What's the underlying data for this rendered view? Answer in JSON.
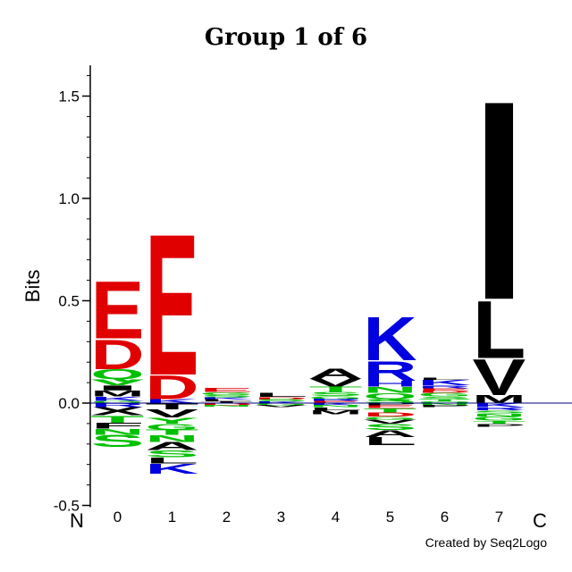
{
  "chart_data": {
    "type": "sequence-logo",
    "title": "Group 1 of 6",
    "ylabel": "Bits",
    "ylim": [
      -0.5,
      1.65
    ],
    "yticks": [
      -0.5,
      0.0,
      0.5,
      1.0,
      1.5
    ],
    "ytick_labels": [
      "-0.5",
      "0.0",
      "0.5",
      "1.0",
      "1.5"
    ],
    "positions": [
      "0",
      "1",
      "2",
      "3",
      "4",
      "5",
      "6",
      "7"
    ],
    "n_label": "N",
    "c_label": "C",
    "credit": "Created by Seq2Logo",
    "colors": {
      "acidic": "#e00000",
      "basic": "#0000e0",
      "polar": "#00c000",
      "hydrophobic": "#000000",
      "baseline": "#000080"
    },
    "columns": [
      {
        "position": "0",
        "positive": [
          {
            "letter": "E",
            "value": 0.29,
            "color": "#e00000"
          },
          {
            "letter": "D",
            "value": 0.15,
            "color": "#e00000"
          },
          {
            "letter": "Q",
            "value": 0.05,
            "color": "#00c000"
          },
          {
            "letter": "V",
            "value": 0.03,
            "color": "#00c000"
          },
          {
            "letter": "I",
            "value": 0.025,
            "color": "#000000"
          },
          {
            "letter": "M",
            "value": 0.03,
            "color": "#000000"
          },
          {
            "letter": "K",
            "value": 0.02,
            "color": "#0000e0"
          },
          {
            "letter": "G",
            "value": 0.012,
            "color": "#00c000"
          }
        ],
        "negative": [
          {
            "letter": "R",
            "value": 0.02,
            "color": "#0000e0"
          },
          {
            "letter": "X",
            "value": 0.04,
            "color": "#000000"
          },
          {
            "letter": "T",
            "value": 0.035,
            "color": "#00c000"
          },
          {
            "letter": "F",
            "value": 0.03,
            "color": "#000000"
          },
          {
            "letter": "N",
            "value": 0.03,
            "color": "#00c000"
          },
          {
            "letter": "S",
            "value": 0.06,
            "color": "#00c000"
          }
        ]
      },
      {
        "position": "1",
        "positive": [
          {
            "letter": "E",
            "value": 0.71,
            "color": "#e00000"
          },
          {
            "letter": "D",
            "value": 0.12,
            "color": "#e00000"
          },
          {
            "letter": "K",
            "value": 0.02,
            "color": "#0000e0"
          }
        ],
        "negative": [
          {
            "letter": "T",
            "value": 0.03,
            "color": "#000000"
          },
          {
            "letter": "V",
            "value": 0.04,
            "color": "#000000"
          },
          {
            "letter": "Y",
            "value": 0.03,
            "color": "#00c000"
          },
          {
            "letter": "G",
            "value": 0.03,
            "color": "#00c000"
          },
          {
            "letter": "T",
            "value": 0.025,
            "color": "#00c000"
          },
          {
            "letter": "N",
            "value": 0.035,
            "color": "#00c000"
          },
          {
            "letter": "A",
            "value": 0.04,
            "color": "#000000"
          },
          {
            "letter": "S",
            "value": 0.035,
            "color": "#00c000"
          },
          {
            "letter": "L",
            "value": 0.03,
            "color": "#000000"
          },
          {
            "letter": "K",
            "value": 0.05,
            "color": "#0000e0"
          }
        ]
      },
      {
        "position": "2",
        "positive": [
          {
            "letter": "E",
            "value": 0.02,
            "color": "#e00000"
          },
          {
            "letter": "G",
            "value": 0.015,
            "color": "#00c000"
          },
          {
            "letter": "S",
            "value": 0.012,
            "color": "#00c000"
          },
          {
            "letter": "K",
            "value": 0.01,
            "color": "#0000e0"
          },
          {
            "letter": "L",
            "value": 0.01,
            "color": "#000000"
          },
          {
            "letter": "T",
            "value": 0.008,
            "color": "#000000"
          }
        ],
        "negative": [
          {
            "letter": "D",
            "value": 0.01,
            "color": "#e00000"
          },
          {
            "letter": "N",
            "value": 0.008,
            "color": "#00c000"
          }
        ]
      },
      {
        "position": "3",
        "positive": [
          {
            "letter": "L",
            "value": 0.02,
            "color": "#000000"
          },
          {
            "letter": "D",
            "value": 0.012,
            "color": "#e00000"
          },
          {
            "letter": "S",
            "value": 0.01,
            "color": "#00c000"
          },
          {
            "letter": "K",
            "value": 0.008,
            "color": "#0000e0"
          }
        ],
        "negative": [
          {
            "letter": "G",
            "value": 0.01,
            "color": "#00c000"
          },
          {
            "letter": "V",
            "value": 0.01,
            "color": "#000000"
          }
        ]
      },
      {
        "position": "4",
        "positive": [
          {
            "letter": "A",
            "value": 0.05,
            "color": "#000000"
          },
          {
            "letter": "V",
            "value": 0.04,
            "color": "#000000"
          },
          {
            "letter": "T",
            "value": 0.025,
            "color": "#00c000"
          },
          {
            "letter": "S",
            "value": 0.02,
            "color": "#00c000"
          },
          {
            "letter": "G",
            "value": 0.015,
            "color": "#00c000"
          },
          {
            "letter": "R",
            "value": 0.01,
            "color": "#0000e0"
          },
          {
            "letter": "E",
            "value": 0.01,
            "color": "#e00000"
          }
        ],
        "negative": [
          {
            "letter": "K",
            "value": 0.01,
            "color": "#0000e0"
          },
          {
            "letter": "N",
            "value": 0.01,
            "color": "#00c000"
          },
          {
            "letter": "L",
            "value": 0.015,
            "color": "#000000"
          },
          {
            "letter": "M",
            "value": 0.02,
            "color": "#000000"
          }
        ]
      },
      {
        "position": "5",
        "positive": [
          {
            "letter": "K",
            "value": 0.22,
            "color": "#0000e0"
          },
          {
            "letter": "R",
            "value": 0.1,
            "color": "#0000e0"
          },
          {
            "letter": "H",
            "value": 0.03,
            "color": "#0000e0"
          },
          {
            "letter": "N",
            "value": 0.03,
            "color": "#00c000"
          },
          {
            "letter": "Q",
            "value": 0.03,
            "color": "#00c000"
          },
          {
            "letter": "S",
            "value": 0.02,
            "color": "#00c000"
          }
        ],
        "negative": [
          {
            "letter": "P",
            "value": 0.01,
            "color": "#000000"
          },
          {
            "letter": "E",
            "value": 0.015,
            "color": "#e00000"
          },
          {
            "letter": "T",
            "value": 0.02,
            "color": "#00c000"
          },
          {
            "letter": "D",
            "value": 0.02,
            "color": "#e00000"
          },
          {
            "letter": "G",
            "value": 0.015,
            "color": "#00c000"
          },
          {
            "letter": "V",
            "value": 0.02,
            "color": "#000000"
          },
          {
            "letter": "S",
            "value": 0.03,
            "color": "#00c000"
          },
          {
            "letter": "A",
            "value": 0.035,
            "color": "#000000"
          },
          {
            "letter": "L",
            "value": 0.04,
            "color": "#000000"
          }
        ]
      },
      {
        "position": "6",
        "positive": [
          {
            "letter": "L",
            "value": 0.012,
            "color": "#000000"
          },
          {
            "letter": "K",
            "value": 0.025,
            "color": "#0000e0"
          },
          {
            "letter": "R",
            "value": 0.015,
            "color": "#0000e0"
          },
          {
            "letter": "E",
            "value": 0.012,
            "color": "#e00000"
          },
          {
            "letter": "D",
            "value": 0.01,
            "color": "#e00000"
          },
          {
            "letter": "G",
            "value": 0.018,
            "color": "#00c000"
          },
          {
            "letter": "S",
            "value": 0.015,
            "color": "#00c000"
          },
          {
            "letter": "T",
            "value": 0.01,
            "color": "#00c000"
          },
          {
            "letter": "Q",
            "value": 0.008,
            "color": "#00c000"
          }
        ],
        "negative": [
          {
            "letter": "N",
            "value": 0.01,
            "color": "#00c000"
          },
          {
            "letter": "P",
            "value": 0.01,
            "color": "#000000"
          }
        ]
      },
      {
        "position": "7",
        "positive": [
          {
            "letter": "I",
            "value": 1.0,
            "color": "#000000"
          },
          {
            "letter": "L",
            "value": 0.29,
            "color": "#000000"
          },
          {
            "letter": "V",
            "value": 0.18,
            "color": "#000000"
          },
          {
            "letter": "M",
            "value": 0.04,
            "color": "#000000"
          }
        ],
        "negative": [
          {
            "letter": "K",
            "value": 0.02,
            "color": "#0000e0"
          },
          {
            "letter": "R",
            "value": 0.015,
            "color": "#0000e0"
          },
          {
            "letter": "S",
            "value": 0.015,
            "color": "#00c000"
          },
          {
            "letter": "N",
            "value": 0.015,
            "color": "#00c000"
          },
          {
            "letter": "G",
            "value": 0.02,
            "color": "#00c000"
          },
          {
            "letter": "T",
            "value": 0.015,
            "color": "#00c000"
          },
          {
            "letter": "P",
            "value": 0.015,
            "color": "#000000"
          }
        ]
      }
    ]
  }
}
